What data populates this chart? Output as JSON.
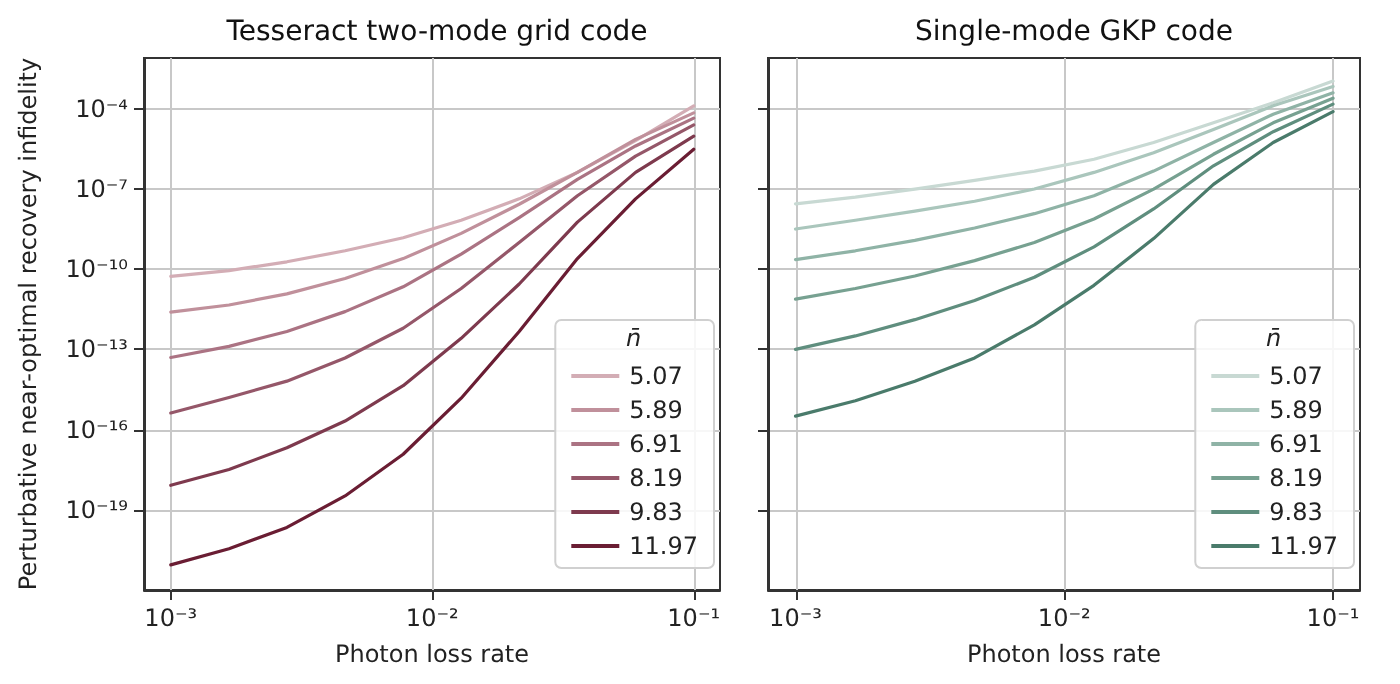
{
  "chart_data": [
    {
      "type": "line",
      "title": "Tesseract two-mode grid code",
      "xlabel": "Photon loss rate",
      "ylabel": "Perturbative near-optimal recovery infidelity",
      "legend_title": "n̄",
      "legend": "bottom right",
      "grid": true,
      "log": "xy",
      "marker": "none",
      "x": [
        0.001,
        0.00167,
        0.00278,
        0.00464,
        0.00774,
        0.0129,
        0.0215,
        0.0359,
        0.0599,
        0.1
      ],
      "xlim": [
        0.00079,
        0.126
      ],
      "ylim": [
        1e-22,
        0.008
      ],
      "xticks": [
        {
          "value": 0.001,
          "label": "10⁻³"
        },
        {
          "value": 0.01,
          "label": "10⁻²"
        },
        {
          "value": 0.1,
          "label": "10⁻¹"
        }
      ],
      "yticks": [
        {
          "value": 1e-19,
          "label": "10⁻¹⁹"
        },
        {
          "value": 1e-16,
          "label": "10⁻¹⁶"
        },
        {
          "value": 1e-13,
          "label": "10⁻¹³"
        },
        {
          "value": 1e-10,
          "label": "10⁻¹⁰"
        },
        {
          "value": 1e-07,
          "label": "10⁻⁷"
        },
        {
          "value": 0.0001,
          "label": "10⁻⁴"
        }
      ],
      "series": [
        {
          "name": "5.07",
          "color": "#d3adb5",
          "values": [
            5.4e-11,
            8.9e-11,
            1.9e-10,
            4.9e-10,
            1.5e-09,
            6.8e-09,
            4.3e-08,
            4.2e-07,
            6.5e-06,
            0.00013
          ]
        },
        {
          "name": "5.89",
          "color": "#c0909b",
          "values": [
            2.5e-12,
            4.6e-12,
            1.2e-11,
            4.5e-11,
            2.5e-10,
            2.2e-09,
            2.7e-08,
            4.2e-07,
            7.2e-06,
            7.1e-05
          ]
        },
        {
          "name": "6.91",
          "color": "#ab7383",
          "values": [
            5e-14,
            1.3e-13,
            4.7e-13,
            2.6e-12,
            2.2e-11,
            3.7e-10,
            8.5e-09,
            2.3e-07,
            4.1e-06,
            4.5e-05
          ]
        },
        {
          "name": "8.19",
          "color": "#955769",
          "values": [
            4.2e-16,
            1.6e-15,
            6.5e-15,
            4.8e-14,
            6.2e-13,
            1.9e-11,
            1e-09,
            5.6e-08,
            1.7e-06,
            2.5e-05
          ]
        },
        {
          "name": "9.83",
          "color": "#7e3a4e",
          "values": [
            8.3e-19,
            3.2e-18,
            2.1e-17,
            2.1e-16,
            4.4e-15,
            2.6e-13,
            2.8e-11,
            5.8e-09,
            4.2e-07,
            9.5e-06
          ]
        },
        {
          "name": "11.97",
          "color": "#6a1d33",
          "values": [
            8.7e-22,
            3.5e-21,
            2.2e-20,
            3.3e-19,
            1.2e-17,
            1.5e-15,
            4.7e-13,
            2.5e-10,
            4.3e-08,
            3.1e-06
          ]
        }
      ]
    },
    {
      "type": "line",
      "title": "Single-mode GKP code",
      "xlabel": "Photon loss rate",
      "legend_title": "n̄",
      "legend": "bottom right",
      "grid": true,
      "log": "xy",
      "marker": "none",
      "tick_labels": "x",
      "x": [
        0.001,
        0.00167,
        0.00278,
        0.00464,
        0.00774,
        0.0129,
        0.0215,
        0.0359,
        0.0599,
        0.1
      ],
      "xlim": [
        0.00079,
        0.126
      ],
      "ylim": [
        1e-22,
        0.008
      ],
      "xticks": [
        {
          "value": 0.001,
          "label": "10⁻³"
        },
        {
          "value": 0.01,
          "label": "10⁻²"
        },
        {
          "value": 0.1,
          "label": "10⁻¹"
        }
      ],
      "yticks": [
        {
          "value": 1e-19,
          "label": null
        },
        {
          "value": 1e-16,
          "label": null
        },
        {
          "value": 1e-13,
          "label": null
        },
        {
          "value": 1e-10,
          "label": null
        },
        {
          "value": 1e-07,
          "label": null
        },
        {
          "value": 0.0001,
          "label": null
        }
      ],
      "series": [
        {
          "name": "5.07",
          "color": "#c8d9d3",
          "values": [
            2.8e-08,
            5e-08,
            1e-07,
            2.1e-07,
            4.7e-07,
            1.3e-06,
            5.5e-06,
            3e-05,
            0.00017,
            0.0011
          ]
        },
        {
          "name": "5.89",
          "color": "#aac6bc",
          "values": [
            3.2e-09,
            6.8e-09,
            1.5e-08,
            3.5e-08,
            1e-07,
            4.2e-07,
            2.3e-06,
            1.7e-05,
            0.00013,
            0.00069
          ]
        },
        {
          "name": "6.91",
          "color": "#8fb3a6",
          "values": [
            2.3e-10,
            4.9e-10,
            1.2e-09,
            3.5e-09,
            1.2e-08,
            5.6e-08,
            4.7e-07,
            5.5e-06,
            6.3e-05,
            0.0004
          ]
        },
        {
          "name": "8.19",
          "color": "#77a191",
          "values": [
            7.6e-12,
            1.9e-11,
            5.6e-11,
            2.1e-10,
            1e-09,
            7.6e-09,
            1e-07,
            2e-06,
            3e-05,
            0.00025
          ]
        },
        {
          "name": "9.83",
          "color": "#5f8e7e",
          "values": [
            1e-13,
            3.2e-13,
            1.3e-12,
            6.8e-12,
            5e-11,
            6.9e-10,
            1.8e-08,
            7.4e-07,
            1.4e-05,
            0.00015
          ]
        },
        {
          "name": "11.97",
          "color": "#4a7b6b",
          "values": [
            3.2e-16,
            1.2e-15,
            6.5e-15,
            4.8e-14,
            8.3e-13,
            2.5e-11,
            1.4e-09,
            1.5e-07,
            5.5e-06,
            7.9e-05
          ]
        }
      ]
    }
  ]
}
